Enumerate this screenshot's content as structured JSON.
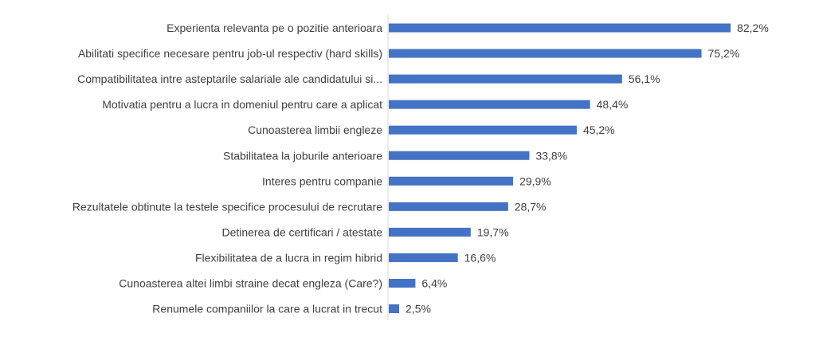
{
  "chart_data": {
    "type": "bar",
    "orientation": "horizontal",
    "categories": [
      "Experienta relevanta pe o pozitie anterioara",
      "Abilitati specifice necesare pentru job-ul respectiv (hard skills)",
      "Compatibilitatea intre asteptarile salariale ale candidatului si...",
      "Motivatia pentru a lucra in domeniul pentru care a aplicat",
      "Cunoasterea limbii engleze",
      "Stabilitatea la joburile anterioare",
      "Interes pentru companie",
      "Rezultatele obtinute la testele specifice procesului de recrutare",
      "Detinerea de certificari / atestate",
      "Flexibilitatea de a lucra in regim hibrid",
      "Cunoasterea altei limbi straine decat engleza (Care?)",
      "Renumele companiilor la care a lucrat in trecut"
    ],
    "values": [
      82.2,
      75.2,
      56.1,
      48.4,
      45.2,
      33.8,
      29.9,
      28.7,
      19.7,
      16.6,
      6.4,
      2.5
    ],
    "value_labels": [
      "82,2%",
      "75,2%",
      "56,1%",
      "48,4%",
      "45,2%",
      "33,8%",
      "29,9%",
      "28,7%",
      "19,7%",
      "16,6%",
      "6,4%",
      "2,5%"
    ],
    "title": "",
    "xlabel": "",
    "ylabel": "",
    "xlim": [
      0,
      100
    ],
    "grid": false,
    "legend": "none",
    "bar_color": "#4472c4",
    "text_color": "#404040",
    "axis_color": "#d9d9d9"
  }
}
